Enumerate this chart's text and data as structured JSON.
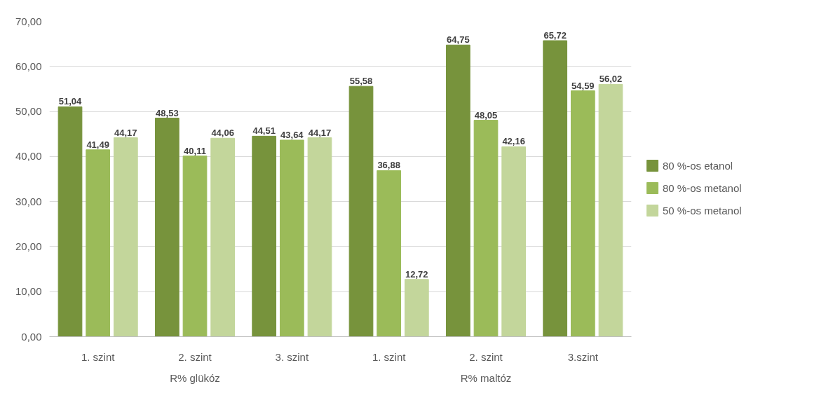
{
  "chart_data": {
    "type": "bar",
    "categories": [
      "1. szint",
      "2. szint",
      "3. szint",
      "1. szint",
      "2. szint",
      "3.szint"
    ],
    "annotations": [
      "R% glükóz",
      "R% maltóz"
    ],
    "series": [
      {
        "name": "80 %-os etanol",
        "color": "#77933c",
        "values": [
          51.04,
          48.53,
          44.51,
          55.58,
          64.75,
          65.72
        ],
        "value_labels": [
          "51,04",
          "48,53",
          "44,51",
          "55,58",
          "64,75",
          "65,72"
        ]
      },
      {
        "name": "80 %-os metanol",
        "color": "#9bbb59",
        "values": [
          41.49,
          40.11,
          43.64,
          36.88,
          48.05,
          54.59
        ],
        "value_labels": [
          "41,49",
          "40,11",
          "43,64",
          "36,88",
          "48,05",
          "54,59"
        ]
      },
      {
        "name": "50 %-os metanol",
        "color": "#c3d69b",
        "values": [
          44.17,
          44.06,
          44.17,
          12.72,
          42.16,
          56.02
        ],
        "value_labels": [
          "44,17",
          "44,06",
          "44,17",
          "12,72",
          "42,16",
          "56,02"
        ]
      }
    ],
    "ylim": [
      0,
      70
    ],
    "yticks": [
      {
        "value": 0,
        "label": "0,00"
      },
      {
        "value": 10,
        "label": "10,00"
      },
      {
        "value": 20,
        "label": "20,00"
      },
      {
        "value": 30,
        "label": "30,00"
      },
      {
        "value": 40,
        "label": "40,00"
      },
      {
        "value": 50,
        "label": "50,00"
      },
      {
        "value": 60,
        "label": "60,00"
      },
      {
        "value": 70,
        "label": "70,00"
      }
    ],
    "grid": "y",
    "legend": "right"
  }
}
